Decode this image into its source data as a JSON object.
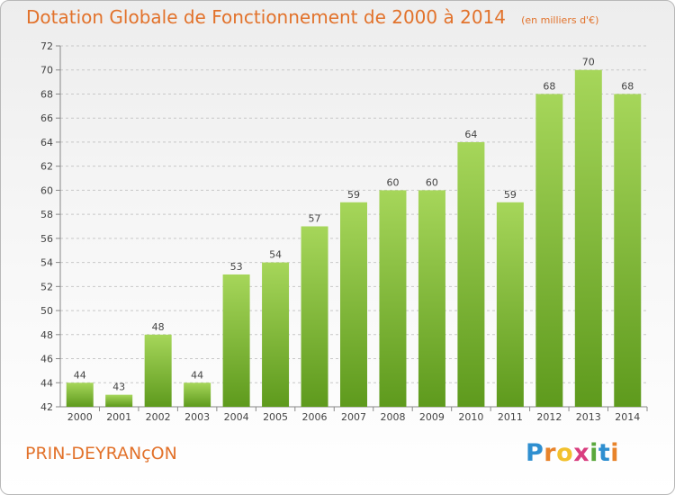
{
  "title": "Dotation Globale de Fonctionnement de 2000 à 2014",
  "unit_label": "(en milliers d'€)",
  "place_name": "PRIN-DEYRANçON",
  "brand": {
    "letters": [
      "P",
      "r",
      "o",
      "x",
      "i",
      "t",
      "i"
    ],
    "colors": [
      "#2f8fd0",
      "#e8832a",
      "#f2c12e",
      "#d93e7f",
      "#5aa83c",
      "#2f8fd0",
      "#e8832a"
    ]
  },
  "colors": {
    "bar_light": "#a6d65a",
    "bar_dark": "#5e9a1d",
    "title": "#e2722b",
    "grid": "#c8c8c8"
  },
  "chart_data": {
    "type": "bar",
    "title": "Dotation Globale de Fonctionnement de 2000 à 2014",
    "subtitle": "(en milliers d'€)",
    "xlabel": "",
    "ylabel": "",
    "categories": [
      "2000",
      "2001",
      "2002",
      "2003",
      "2004",
      "2005",
      "2006",
      "2007",
      "2008",
      "2009",
      "2010",
      "2011",
      "2012",
      "2013",
      "2014"
    ],
    "values": [
      44,
      43,
      48,
      44,
      53,
      54,
      57,
      59,
      60,
      60,
      64,
      59,
      68,
      70,
      68
    ],
    "ylim": [
      42,
      72
    ],
    "yticks": [
      42,
      44,
      46,
      48,
      50,
      52,
      54,
      56,
      58,
      60,
      62,
      64,
      66,
      68,
      70,
      72
    ],
    "grid": true,
    "legend": "none"
  }
}
